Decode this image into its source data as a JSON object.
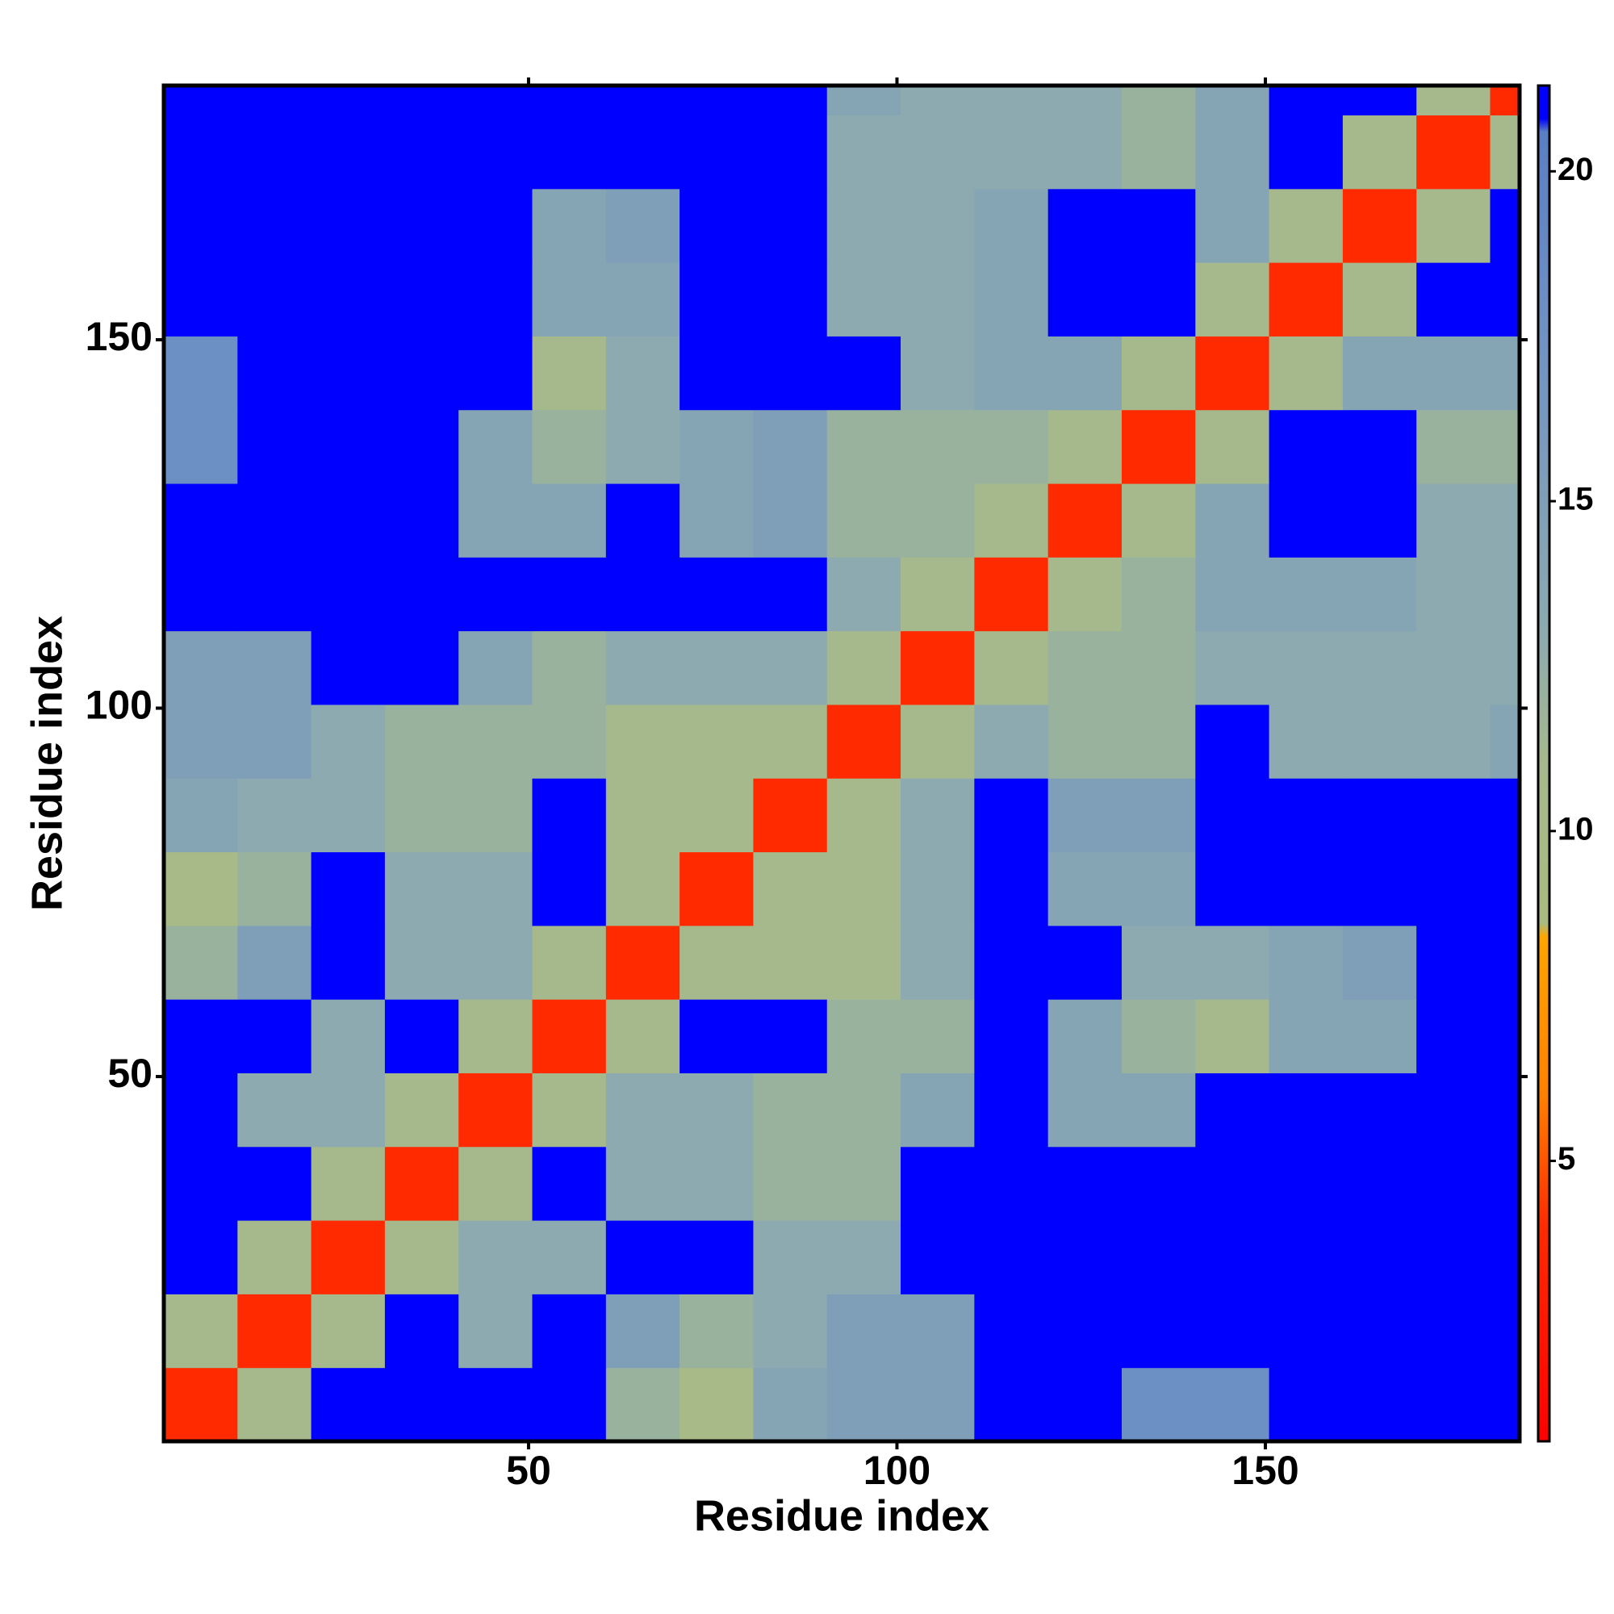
{
  "chart_data": {
    "type": "heatmap",
    "xlabel": "Residue index",
    "ylabel": "Residue index",
    "xbins": [
      0.5,
      10.5,
      20.5,
      30.5,
      40.5,
      50.5,
      60.5,
      70.5,
      80.5,
      90.5,
      100.5,
      110.5,
      120.5,
      130.5,
      140.5,
      150.5,
      160.5,
      170.5,
      180.5,
      184.5
    ],
    "ybins": [
      0.5,
      10.5,
      20.5,
      30.5,
      40.5,
      50.5,
      60.5,
      70.5,
      80.5,
      90.5,
      100.5,
      110.5,
      120.5,
      130.5,
      140.5,
      150.5,
      160.5,
      170.5,
      180.5,
      184.5
    ],
    "z": [
      [
        4,
        11,
        21,
        21,
        21,
        21,
        12,
        10,
        14,
        15,
        15,
        21,
        21,
        18,
        18,
        21,
        21,
        21,
        21
      ],
      [
        11,
        4,
        11,
        21,
        13,
        21,
        15,
        12,
        13,
        15,
        15,
        21,
        21,
        21,
        21,
        21,
        21,
        21,
        21
      ],
      [
        21,
        11,
        4,
        11,
        13,
        13,
        21,
        21,
        13,
        13,
        21,
        21,
        21,
        21,
        21,
        21,
        21,
        21,
        21
      ],
      [
        21,
        21,
        11,
        4,
        11,
        21,
        13,
        13,
        12,
        12,
        21,
        21,
        21,
        21,
        21,
        21,
        21,
        21,
        21
      ],
      [
        21,
        13,
        13,
        11,
        4,
        11,
        13,
        13,
        12,
        12,
        14,
        21,
        14,
        14,
        21,
        21,
        21,
        21,
        21
      ],
      [
        21,
        21,
        13,
        21,
        11,
        4,
        11,
        21,
        21,
        12,
        12,
        21,
        14,
        12,
        11,
        14,
        14,
        21,
        21
      ],
      [
        12,
        15,
        21,
        13,
        13,
        11,
        4,
        11,
        11,
        11,
        13,
        21,
        21,
        13,
        13,
        14,
        15,
        21,
        21
      ],
      [
        10,
        12,
        21,
        13,
        13,
        21,
        11,
        4,
        11,
        11,
        13,
        21,
        14,
        14,
        21,
        21,
        21,
        21,
        21
      ],
      [
        14,
        13,
        13,
        12,
        12,
        21,
        11,
        11,
        4,
        11,
        13,
        21,
        15,
        15,
        21,
        21,
        21,
        21,
        21
      ],
      [
        15,
        15,
        13,
        12,
        12,
        12,
        11,
        11,
        11,
        4,
        11,
        13,
        12,
        12,
        21,
        13,
        13,
        13,
        14
      ],
      [
        15,
        15,
        21,
        21,
        14,
        12,
        13,
        13,
        13,
        11,
        4,
        11,
        12,
        12,
        13,
        13,
        13,
        13,
        13
      ],
      [
        21,
        21,
        21,
        21,
        21,
        21,
        21,
        21,
        21,
        13,
        11,
        4,
        11,
        12,
        14,
        14,
        14,
        13,
        13
      ],
      [
        21,
        21,
        21,
        21,
        14,
        14,
        21,
        14,
        15,
        12,
        12,
        11,
        4,
        11,
        14,
        21,
        21,
        13,
        13
      ],
      [
        18,
        21,
        21,
        21,
        14,
        12,
        13,
        14,
        15,
        12,
        12,
        12,
        11,
        4,
        11,
        21,
        21,
        12,
        12
      ],
      [
        18,
        21,
        21,
        21,
        21,
        11,
        13,
        21,
        21,
        21,
        13,
        14,
        14,
        11,
        4,
        11,
        14,
        14,
        14
      ],
      [
        21,
        21,
        21,
        21,
        21,
        14,
        14,
        21,
        21,
        13,
        13,
        14,
        21,
        21,
        11,
        4,
        11,
        21,
        21
      ],
      [
        21,
        21,
        21,
        21,
        21,
        14,
        15,
        21,
        21,
        13,
        13,
        14,
        21,
        21,
        14,
        11,
        4,
        11,
        21
      ],
      [
        21,
        21,
        21,
        21,
        21,
        21,
        21,
        21,
        21,
        13,
        13,
        13,
        13,
        12,
        14,
        21,
        11,
        4,
        11
      ],
      [
        21,
        21,
        21,
        21,
        21,
        21,
        21,
        21,
        21,
        14,
        13,
        13,
        13,
        12,
        14,
        21,
        21,
        11,
        4
      ]
    ],
    "xlim": [
      0.5,
      184.5
    ],
    "ylim": [
      0.5,
      184.5
    ],
    "xticks": [
      50,
      100,
      150
    ],
    "yticks": [
      50,
      100,
      150
    ],
    "clim": [
      0.75,
      21.3
    ],
    "cticks": [
      5,
      10,
      15,
      20
    ],
    "colorscale": [
      [
        0.75,
        "#ff0000"
      ],
      [
        4,
        "#ff2a00"
      ],
      [
        6,
        "#ff8000"
      ],
      [
        8.4,
        "#ffa500"
      ],
      [
        8.6,
        "#a9bb80"
      ],
      [
        11,
        "#a6b98c"
      ],
      [
        13,
        "#8caab0"
      ],
      [
        18,
        "#6c8fc4"
      ],
      [
        20.6,
        "#5a7ec4"
      ],
      [
        20.8,
        "#0000ff"
      ],
      [
        21.3,
        "#0000ff"
      ]
    ]
  }
}
